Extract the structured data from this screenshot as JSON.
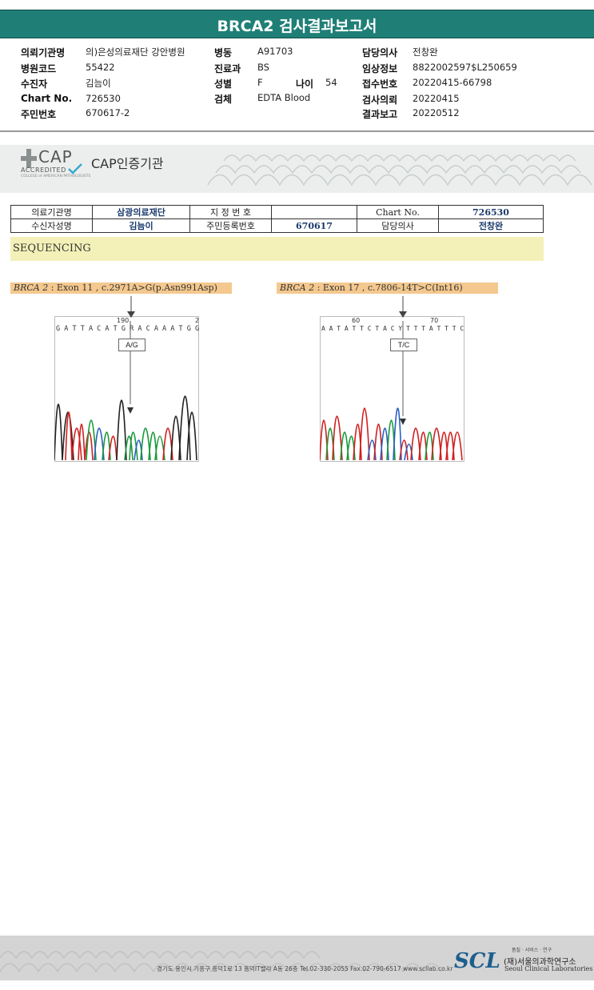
{
  "title": "BRCA2 검사결과보고서",
  "header": {
    "col1": [
      {
        "label": "의뢰기관명",
        "value": "의)은성의료재단 강안병원"
      },
      {
        "label": "병원코드",
        "value": "55422"
      },
      {
        "label": "수진자",
        "value": "김늠이"
      },
      {
        "label": "Chart No.",
        "value": "726530"
      },
      {
        "label": "주민번호",
        "value": "670617-2"
      }
    ],
    "col2": [
      {
        "label": "병동",
        "value": "A91703"
      },
      {
        "label": "진료과",
        "value": "BS"
      },
      {
        "label": "성별",
        "value": "F"
      },
      {
        "label": "검체",
        "value": "EDTA Blood"
      }
    ],
    "age": {
      "label": "나이",
      "value": "54"
    },
    "col3": [
      {
        "label": "담당의사",
        "value": "전창완"
      },
      {
        "label": "임상정보",
        "value": "8822002597$L250659"
      },
      {
        "label": "접수번호",
        "value": "20220415-66798"
      },
      {
        "label": "검사의뢰",
        "value": "20220415"
      },
      {
        "label": "결과보고",
        "value": "20220512"
      }
    ]
  },
  "cap": {
    "logo_text": "CAP",
    "accredited": "ACCREDITED",
    "small": "COLLEGE of AMERICAN PATHOLOGISTS",
    "title": "CAP인증기관"
  },
  "info_table": {
    "r1": [
      "의료기관명",
      "삼광의료재단",
      "지 정 번 호",
      "",
      "Chart No.",
      "726530"
    ],
    "r2": [
      "수신자성명",
      "김늠이",
      "주민등록번호",
      "670617",
      "담당의사",
      "전창완"
    ]
  },
  "sequencing": {
    "label": "SEQUENCING",
    "variants": [
      {
        "gene": "BRCA 2",
        "desc": " : Exon 11 , c.2971A>G(p.Asn991Asp)",
        "pos_label": "190",
        "pos2": "2",
        "bases": "G A T T A C A T G R A C A A A T G G",
        "mut": "A/G"
      },
      {
        "gene": "BRCA 2",
        "desc": " : Exon 17 , c.7806-14T>C(Int16)",
        "pos_label": "60",
        "pos2": "70",
        "bases": "A A T A T T C T A C Y T T T A T T T C",
        "mut": "T/C"
      }
    ]
  },
  "footer": {
    "address": "경기도 용인시 기흥구 흥덕1로 13 흥덕IT밸리 A동 26층  Tel.02-330-2055  Fax.02-790-6517  www.scllab.co.kr",
    "logo": "SCL",
    "small": "품질 · 서비스 · 연구",
    "name": "(재)서울의과학연구소",
    "name_en": "Seoul Clinical Laboratories"
  }
}
